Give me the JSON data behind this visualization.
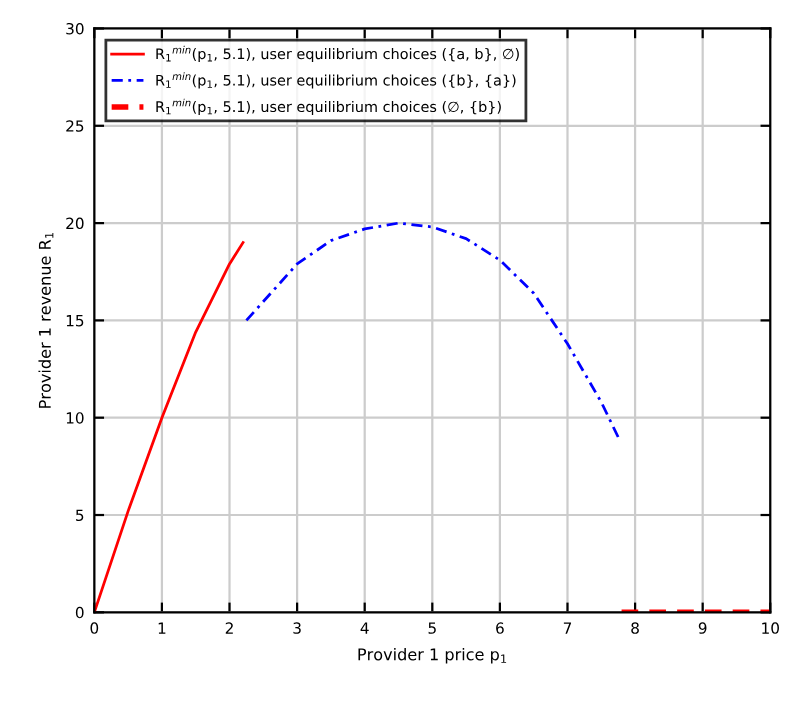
{
  "chart_data": {
    "type": "line",
    "xlabel": "Provider 1 price p$_{1}$",
    "ylabel": "Provider 1 revenue R$_{1}$",
    "xlim": [
      0,
      10
    ],
    "ylim": [
      0,
      30
    ],
    "xticks": [
      0,
      1,
      2,
      3,
      4,
      5,
      6,
      7,
      8,
      9,
      10
    ],
    "yticks": [
      0,
      5,
      10,
      15,
      20,
      25,
      30
    ],
    "grid": true,
    "legend": "top left",
    "marker": "none",
    "series": [
      {
        "name": "R$_{1}$$^{min}$(p$_{1}$, 5.1), user equilibrium choices ({a, b}, ∅)",
        "color": "#ff0000",
        "line_style": "solid",
        "x": [
          0,
          0.5,
          1,
          1.5,
          2,
          2.2
        ],
        "values": [
          0,
          5.2,
          10,
          14.4,
          17.9,
          19
        ]
      },
      {
        "name": "R$_{1}$$^{min}$(p$_{1}$, 5.1), user equilibrium choices ({b}, {a})",
        "color": "#0000ff",
        "line_style": "dashdot",
        "x": [
          2.25,
          3,
          3.5,
          4,
          4.5,
          5,
          5.5,
          6,
          6.5,
          7,
          7.5,
          7.75
        ],
        "values": [
          15,
          17.9,
          19.1,
          19.7,
          20,
          19.8,
          19.2,
          18.1,
          16.4,
          13.8,
          10.8,
          9
        ]
      },
      {
        "name": "R$_{1}$$^{min}$(p$_{1}$, 5.1), user equilibrium choices (∅, {b})",
        "color": "#ff0000",
        "line_style": "dashed",
        "x": [
          7.8,
          10
        ],
        "values": [
          0,
          0
        ]
      }
    ]
  }
}
